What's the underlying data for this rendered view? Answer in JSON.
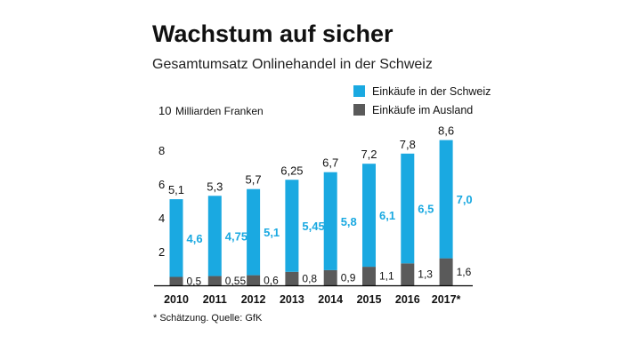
{
  "chart_data": {
    "type": "bar",
    "stacked": true,
    "title": "Wachstum auf sicher",
    "subtitle": "Gesamtumsatz Onlinehandel in der Schweiz",
    "ylabel": "Milliarden Franken",
    "ylim": [
      0,
      10
    ],
    "yticks": [
      "2",
      "4",
      "6",
      "8",
      "10"
    ],
    "categories": [
      "2010",
      "2011",
      "2012",
      "2013",
      "2014",
      "2015",
      "2016",
      "2017*"
    ],
    "series": [
      {
        "name": "Einkäufe im Ausland",
        "color": "#5a5a5a",
        "values": [
          0.5,
          0.55,
          0.6,
          0.8,
          0.9,
          1.1,
          1.3,
          1.6
        ],
        "labels": [
          "0,5",
          "0,55",
          "0,6",
          "0,8",
          "0,9",
          "1,1",
          "1,3",
          "1,6"
        ]
      },
      {
        "name": "Einkäufe in der Schweiz",
        "color": "#1aa9e1",
        "values": [
          4.6,
          4.75,
          5.1,
          5.45,
          5.8,
          6.1,
          6.5,
          7.0
        ],
        "labels": [
          "4,6",
          "4,75",
          "5,1",
          "5,45",
          "5,8",
          "6,1",
          "6,5",
          "7,0"
        ]
      }
    ],
    "totals": [
      5.1,
      5.3,
      5.7,
      6.25,
      6.7,
      7.2,
      7.8,
      8.6
    ],
    "total_labels": [
      "5,1",
      "5,3",
      "5,7",
      "6,25",
      "6,7",
      "7,2",
      "7,8",
      "8,6"
    ],
    "legend": {
      "placement": "top-right",
      "items": [
        {
          "label": "Einkäufe in der Schweiz",
          "color": "#1aa9e1"
        },
        {
          "label": "Einkäufe im Ausland",
          "color": "#5a5a5a"
        }
      ]
    },
    "grid": false,
    "footnote": "* Schätzung. Quelle: GfK"
  }
}
